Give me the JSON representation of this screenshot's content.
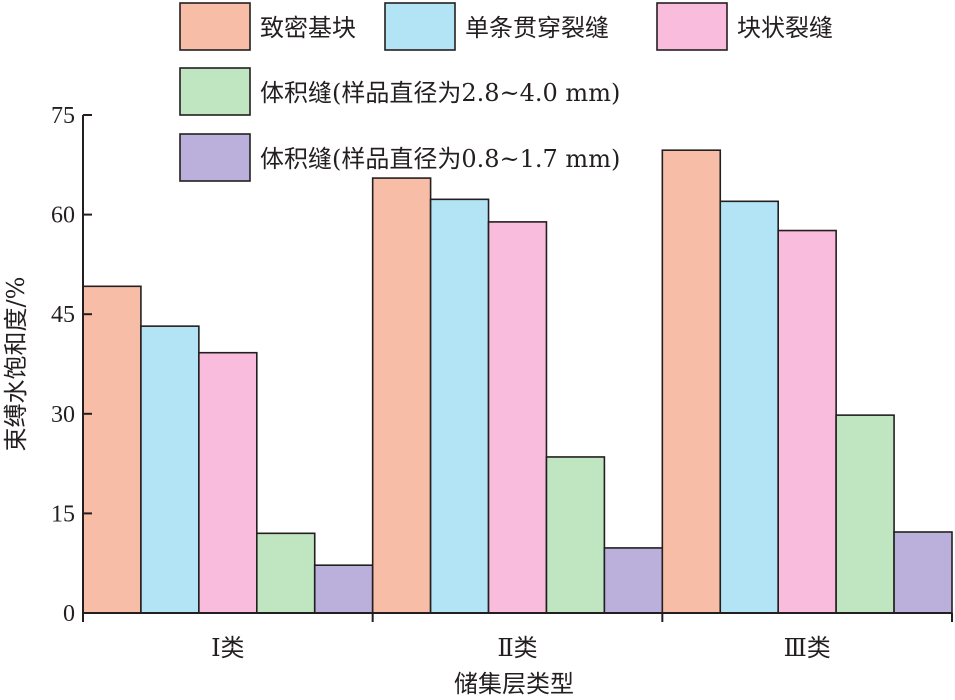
{
  "chart_data": {
    "type": "bar",
    "xlabel": "储集层类型",
    "ylabel": "束缚水饱和度/%",
    "ylim": [
      0,
      75
    ],
    "yticks": [
      0,
      15,
      30,
      45,
      60,
      75
    ],
    "categories": [
      "Ⅰ类",
      "Ⅱ类",
      "Ⅲ类"
    ],
    "series": [
      {
        "name": "致密基块",
        "color": "#f8bda7",
        "values": [
          49.2,
          65.5,
          69.7
        ]
      },
      {
        "name": "单条贯穿裂缝",
        "color": "#b3e4f5",
        "values": [
          43.2,
          62.3,
          62.0
        ]
      },
      {
        "name": "块状裂缝",
        "color": "#f9bcdd",
        "values": [
          39.2,
          58.9,
          57.6
        ]
      },
      {
        "name": "体积缝(样品直径为2.8~4.0 mm)",
        "color": "#c0e5c1",
        "values": [
          12.0,
          23.5,
          29.8
        ]
      },
      {
        "name": "体积缝(样品直径为0.8~1.7 mm)",
        "color": "#bbb0db",
        "values": [
          7.2,
          9.8,
          12.2
        ]
      }
    ],
    "legend_position": "top",
    "grid": false
  }
}
